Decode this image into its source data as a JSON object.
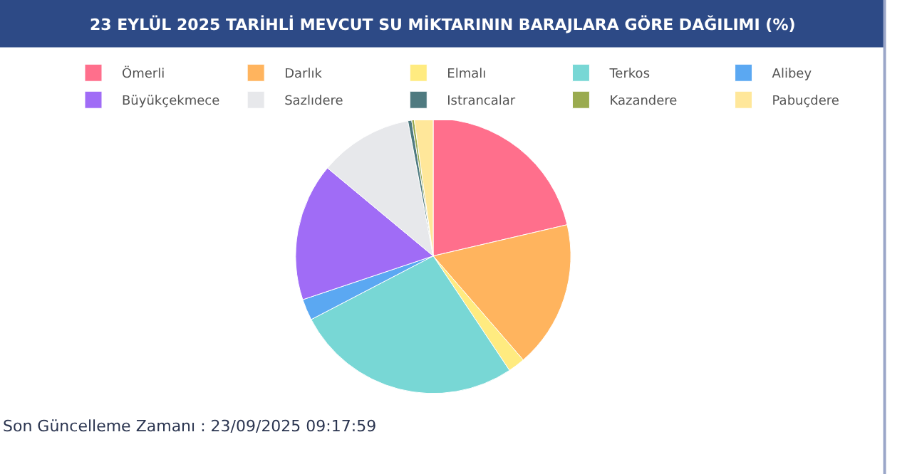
{
  "chart_data": {
    "type": "pie",
    "title": "23 EYLÜL 2025 TARİHLİ MEVCUT SU MİKTARININ BARAJLARA GÖRE DAĞILIMI (%)",
    "categories": [
      "Ömerli",
      "Darlık",
      "Elmalı",
      "Terkos",
      "Alibey",
      "Büyükçekmece",
      "Sazlıdere",
      "Istrancalar",
      "Kazandere",
      "Pabuçdere"
    ],
    "values": [
      21.35,
      17.3,
      2.0,
      26.7,
      2.5,
      16.2,
      11.0,
      0.45,
      0.3,
      2.2
    ],
    "colors": [
      "#ff6f8c",
      "#ffb45e",
      "#ffeb80",
      "#78d7d5",
      "#5ba8f2",
      "#a06cf6",
      "#e7e8eb",
      "#4f7a80",
      "#9aab4f",
      "#ffe79a"
    ],
    "legend": "top",
    "annotations": [
      "Son Güncelleme Zamanı : 23/09/2025 09:17:59"
    ]
  }
}
